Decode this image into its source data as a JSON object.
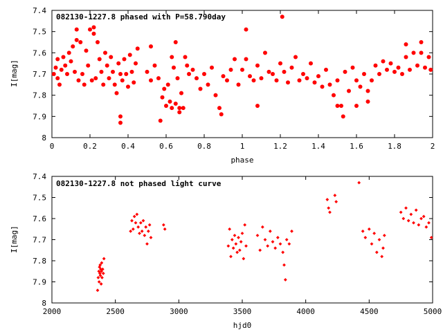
{
  "colors": {
    "marker": "#ff0000",
    "axis": "#000000",
    "background": "#ffffff"
  },
  "chart_data": [
    {
      "type": "scatter",
      "title": "082130-1227.8 phased with P=58.790day",
      "xlabel": "phase",
      "ylabel": "I[mag]",
      "xlim": [
        0,
        2
      ],
      "ylim": [
        8,
        7.4
      ],
      "y_inverted": true,
      "grid": false,
      "marker": "star",
      "x_ticks": [
        "0",
        "0.2",
        "0.4",
        "0.6",
        "0.8",
        "1",
        "1.2",
        "1.4",
        "1.6",
        "1.8",
        "2"
      ],
      "y_ticks": [
        "7.4",
        "7.5",
        "7.6",
        "7.7",
        "7.8",
        "7.9",
        "8"
      ],
      "series": [
        {
          "points": [
            [
              0.01,
              7.7
            ],
            [
              0.02,
              7.67
            ],
            [
              0.03,
              7.72
            ],
            [
              0.04,
              7.75
            ],
            [
              0.05,
              7.68
            ],
            [
              0.06,
              7.62
            ],
            [
              0.07,
              7.66
            ],
            [
              0.08,
              7.7
            ],
            [
              0.09,
              7.6
            ],
            [
              0.1,
              7.64
            ],
            [
              0.11,
              7.57
            ],
            [
              0.12,
              7.69
            ],
            [
              0.13,
              7.54
            ],
            [
              0.14,
              7.73
            ],
            [
              0.15,
              7.55
            ],
            [
              0.16,
              7.7
            ],
            [
              0.17,
              7.75
            ],
            [
              0.18,
              7.59
            ],
            [
              0.19,
              7.66
            ],
            [
              0.2,
              7.49
            ],
            [
              0.21,
              7.73
            ],
            [
              0.22,
              7.51
            ],
            [
              0.23,
              7.72
            ],
            [
              0.24,
              7.55
            ],
            [
              0.25,
              7.63
            ],
            [
              0.26,
              7.69
            ],
            [
              0.27,
              7.75
            ],
            [
              0.28,
              7.6
            ],
            [
              0.29,
              7.66
            ],
            [
              0.3,
              7.72
            ],
            [
              0.31,
              7.62
            ],
            [
              0.32,
              7.69
            ],
            [
              0.33,
              7.75
            ],
            [
              0.34,
              7.79
            ],
            [
              0.35,
              7.65
            ],
            [
              0.36,
              7.7
            ],
            [
              0.37,
              7.73
            ],
            [
              0.38,
              7.63
            ],
            [
              0.39,
              7.7
            ],
            [
              0.4,
              7.76
            ],
            [
              0.41,
              7.61
            ],
            [
              0.42,
              7.69
            ],
            [
              0.43,
              7.74
            ],
            [
              0.44,
              7.65
            ],
            [
              0.45,
              7.58
            ],
            [
              0.5,
              7.69
            ],
            [
              0.52,
              7.73
            ],
            [
              0.54,
              7.66
            ],
            [
              0.56,
              7.72
            ],
            [
              0.58,
              7.81
            ],
            [
              0.59,
              7.77
            ],
            [
              0.6,
              7.85
            ],
            [
              0.61,
              7.75
            ],
            [
              0.62,
              7.83
            ],
            [
              0.63,
              7.86
            ],
            [
              0.64,
              7.67
            ],
            [
              0.65,
              7.84
            ],
            [
              0.66,
              7.72
            ],
            [
              0.67,
              7.86
            ],
            [
              0.68,
              7.79
            ],
            [
              0.69,
              7.86
            ],
            [
              0.7,
              7.62
            ],
            [
              0.71,
              7.66
            ],
            [
              0.72,
              7.7
            ],
            [
              0.74,
              7.68
            ],
            [
              0.76,
              7.72
            ],
            [
              0.78,
              7.77
            ],
            [
              0.8,
              7.7
            ],
            [
              0.82,
              7.75
            ],
            [
              0.84,
              7.67
            ],
            [
              0.86,
              7.8
            ],
            [
              0.88,
              7.86
            ],
            [
              0.9,
              7.71
            ],
            [
              0.92,
              7.73
            ],
            [
              0.94,
              7.68
            ],
            [
              0.96,
              7.63
            ],
            [
              0.98,
              7.75
            ],
            [
              1.0,
              7.68
            ],
            [
              1.02,
              7.63
            ],
            [
              1.04,
              7.71
            ],
            [
              1.06,
              7.73
            ],
            [
              1.08,
              7.66
            ],
            [
              1.1,
              7.72
            ],
            [
              1.12,
              7.6
            ],
            [
              1.14,
              7.69
            ],
            [
              1.16,
              7.7
            ],
            [
              1.18,
              7.73
            ],
            [
              1.2,
              7.65
            ],
            [
              1.22,
              7.69
            ],
            [
              1.24,
              7.74
            ],
            [
              1.26,
              7.67
            ],
            [
              1.28,
              7.62
            ],
            [
              1.3,
              7.73
            ],
            [
              1.32,
              7.7
            ],
            [
              1.34,
              7.72
            ],
            [
              1.36,
              7.65
            ],
            [
              1.38,
              7.74
            ],
            [
              1.4,
              7.71
            ],
            [
              1.42,
              7.76
            ],
            [
              1.44,
              7.68
            ],
            [
              1.46,
              7.75
            ],
            [
              1.48,
              7.8
            ],
            [
              1.5,
              7.73
            ],
            [
              1.52,
              7.85
            ],
            [
              1.54,
              7.69
            ],
            [
              1.56,
              7.78
            ],
            [
              1.58,
              7.67
            ],
            [
              1.6,
              7.73
            ],
            [
              1.62,
              7.76
            ],
            [
              1.64,
              7.7
            ],
            [
              1.66,
              7.78
            ],
            [
              1.68,
              7.73
            ],
            [
              1.7,
              7.66
            ],
            [
              1.72,
              7.7
            ],
            [
              1.74,
              7.64
            ],
            [
              1.76,
              7.68
            ],
            [
              1.78,
              7.65
            ],
            [
              1.8,
              7.69
            ],
            [
              1.82,
              7.67
            ],
            [
              1.84,
              7.7
            ],
            [
              1.86,
              7.62
            ],
            [
              1.88,
              7.68
            ],
            [
              1.9,
              7.6
            ],
            [
              1.92,
              7.66
            ],
            [
              1.94,
              7.6
            ],
            [
              1.96,
              7.67
            ],
            [
              1.98,
              7.62
            ],
            [
              1.99,
              7.68
            ],
            [
              0.36,
              7.9
            ],
            [
              0.36,
              7.93
            ],
            [
              0.57,
              7.92
            ],
            [
              0.67,
              7.88
            ],
            [
              0.89,
              7.89
            ],
            [
              1.08,
              7.85
            ],
            [
              1.21,
              7.43
            ],
            [
              0.22,
              7.48
            ],
            [
              0.13,
              7.49
            ],
            [
              1.02,
              7.49
            ],
            [
              0.52,
              7.57
            ],
            [
              0.63,
              7.62
            ],
            [
              0.65,
              7.55
            ],
            [
              1.5,
              7.85
            ],
            [
              1.53,
              7.9
            ],
            [
              1.6,
              7.85
            ],
            [
              1.66,
              7.83
            ],
            [
              1.86,
              7.56
            ],
            [
              1.94,
              7.55
            ],
            [
              0.03,
              7.63
            ]
          ]
        }
      ]
    },
    {
      "type": "scatter",
      "title": "082130-1227.8 not phased light curve",
      "xlabel": "hjd0",
      "ylabel": "I[mag]",
      "xlim": [
        2000,
        5000
      ],
      "ylim": [
        8,
        7.4
      ],
      "y_inverted": true,
      "grid": false,
      "marker": "diamond",
      "x_ticks": [
        "2000",
        "2500",
        "3000",
        "3500",
        "4000",
        "4500",
        "5000"
      ],
      "y_ticks": [
        "7.4",
        "7.5",
        "7.6",
        "7.7",
        "7.8",
        "7.9",
        "8"
      ],
      "series": [
        {
          "points": [
            [
              2360,
              7.94
            ],
            [
              2365,
              7.88
            ],
            [
              2370,
              7.85
            ],
            [
              2372,
              7.9
            ],
            [
              2375,
              7.83
            ],
            [
              2378,
              7.86
            ],
            [
              2380,
              7.82
            ],
            [
              2382,
              7.87
            ],
            [
              2385,
              7.84
            ],
            [
              2388,
              7.91
            ],
            [
              2390,
              7.85
            ],
            [
              2392,
              7.81
            ],
            [
              2395,
              7.88
            ],
            [
              2400,
              7.84
            ],
            [
              2405,
              7.86
            ],
            [
              2410,
              7.79
            ],
            [
              2620,
              7.66
            ],
            [
              2630,
              7.61
            ],
            [
              2640,
              7.65
            ],
            [
              2650,
              7.59
            ],
            [
              2660,
              7.62
            ],
            [
              2670,
              7.58
            ],
            [
              2680,
              7.64
            ],
            [
              2690,
              7.67
            ],
            [
              2700,
              7.62
            ],
            [
              2710,
              7.66
            ],
            [
              2720,
              7.61
            ],
            [
              2730,
              7.68
            ],
            [
              2740,
              7.64
            ],
            [
              2750,
              7.72
            ],
            [
              2760,
              7.66
            ],
            [
              2770,
              7.63
            ],
            [
              2780,
              7.69
            ],
            [
              2880,
              7.63
            ],
            [
              2890,
              7.65
            ],
            [
              3390,
              7.73
            ],
            [
              3400,
              7.65
            ],
            [
              3410,
              7.78
            ],
            [
              3420,
              7.7
            ],
            [
              3430,
              7.74
            ],
            [
              3440,
              7.68
            ],
            [
              3450,
              7.72
            ],
            [
              3460,
              7.76
            ],
            [
              3470,
              7.69
            ],
            [
              3480,
              7.75
            ],
            [
              3490,
              7.71
            ],
            [
              3500,
              7.67
            ],
            [
              3510,
              7.79
            ],
            [
              3520,
              7.63
            ],
            [
              3530,
              7.73
            ],
            [
              3620,
              7.68
            ],
            [
              3640,
              7.75
            ],
            [
              3660,
              7.64
            ],
            [
              3680,
              7.7
            ],
            [
              3700,
              7.73
            ],
            [
              3720,
              7.66
            ],
            [
              3740,
              7.71
            ],
            [
              3760,
              7.74
            ],
            [
              3780,
              7.69
            ],
            [
              3800,
              7.72
            ],
            [
              3820,
              7.76
            ],
            [
              3830,
              7.82
            ],
            [
              3840,
              7.89
            ],
            [
              3850,
              7.7
            ],
            [
              3870,
              7.72
            ],
            [
              3890,
              7.66
            ],
            [
              4170,
              7.51
            ],
            [
              4180,
              7.55
            ],
            [
              4190,
              7.57
            ],
            [
              4230,
              7.49
            ],
            [
              4240,
              7.52
            ],
            [
              4420,
              7.43
            ],
            [
              4450,
              7.66
            ],
            [
              4470,
              7.69
            ],
            [
              4500,
              7.65
            ],
            [
              4520,
              7.72
            ],
            [
              4540,
              7.67
            ],
            [
              4560,
              7.76
            ],
            [
              4580,
              7.7
            ],
            [
              4600,
              7.78
            ],
            [
              4610,
              7.74
            ],
            [
              4620,
              7.68
            ],
            [
              4750,
              7.57
            ],
            [
              4770,
              7.6
            ],
            [
              4790,
              7.55
            ],
            [
              4810,
              7.61
            ],
            [
              4830,
              7.58
            ],
            [
              4850,
              7.62
            ],
            [
              4870,
              7.56
            ],
            [
              4890,
              7.63
            ],
            [
              4910,
              7.6
            ],
            [
              4930,
              7.59
            ],
            [
              4950,
              7.64
            ],
            [
              4970,
              7.62
            ],
            [
              4990,
              7.69
            ]
          ]
        }
      ]
    }
  ]
}
